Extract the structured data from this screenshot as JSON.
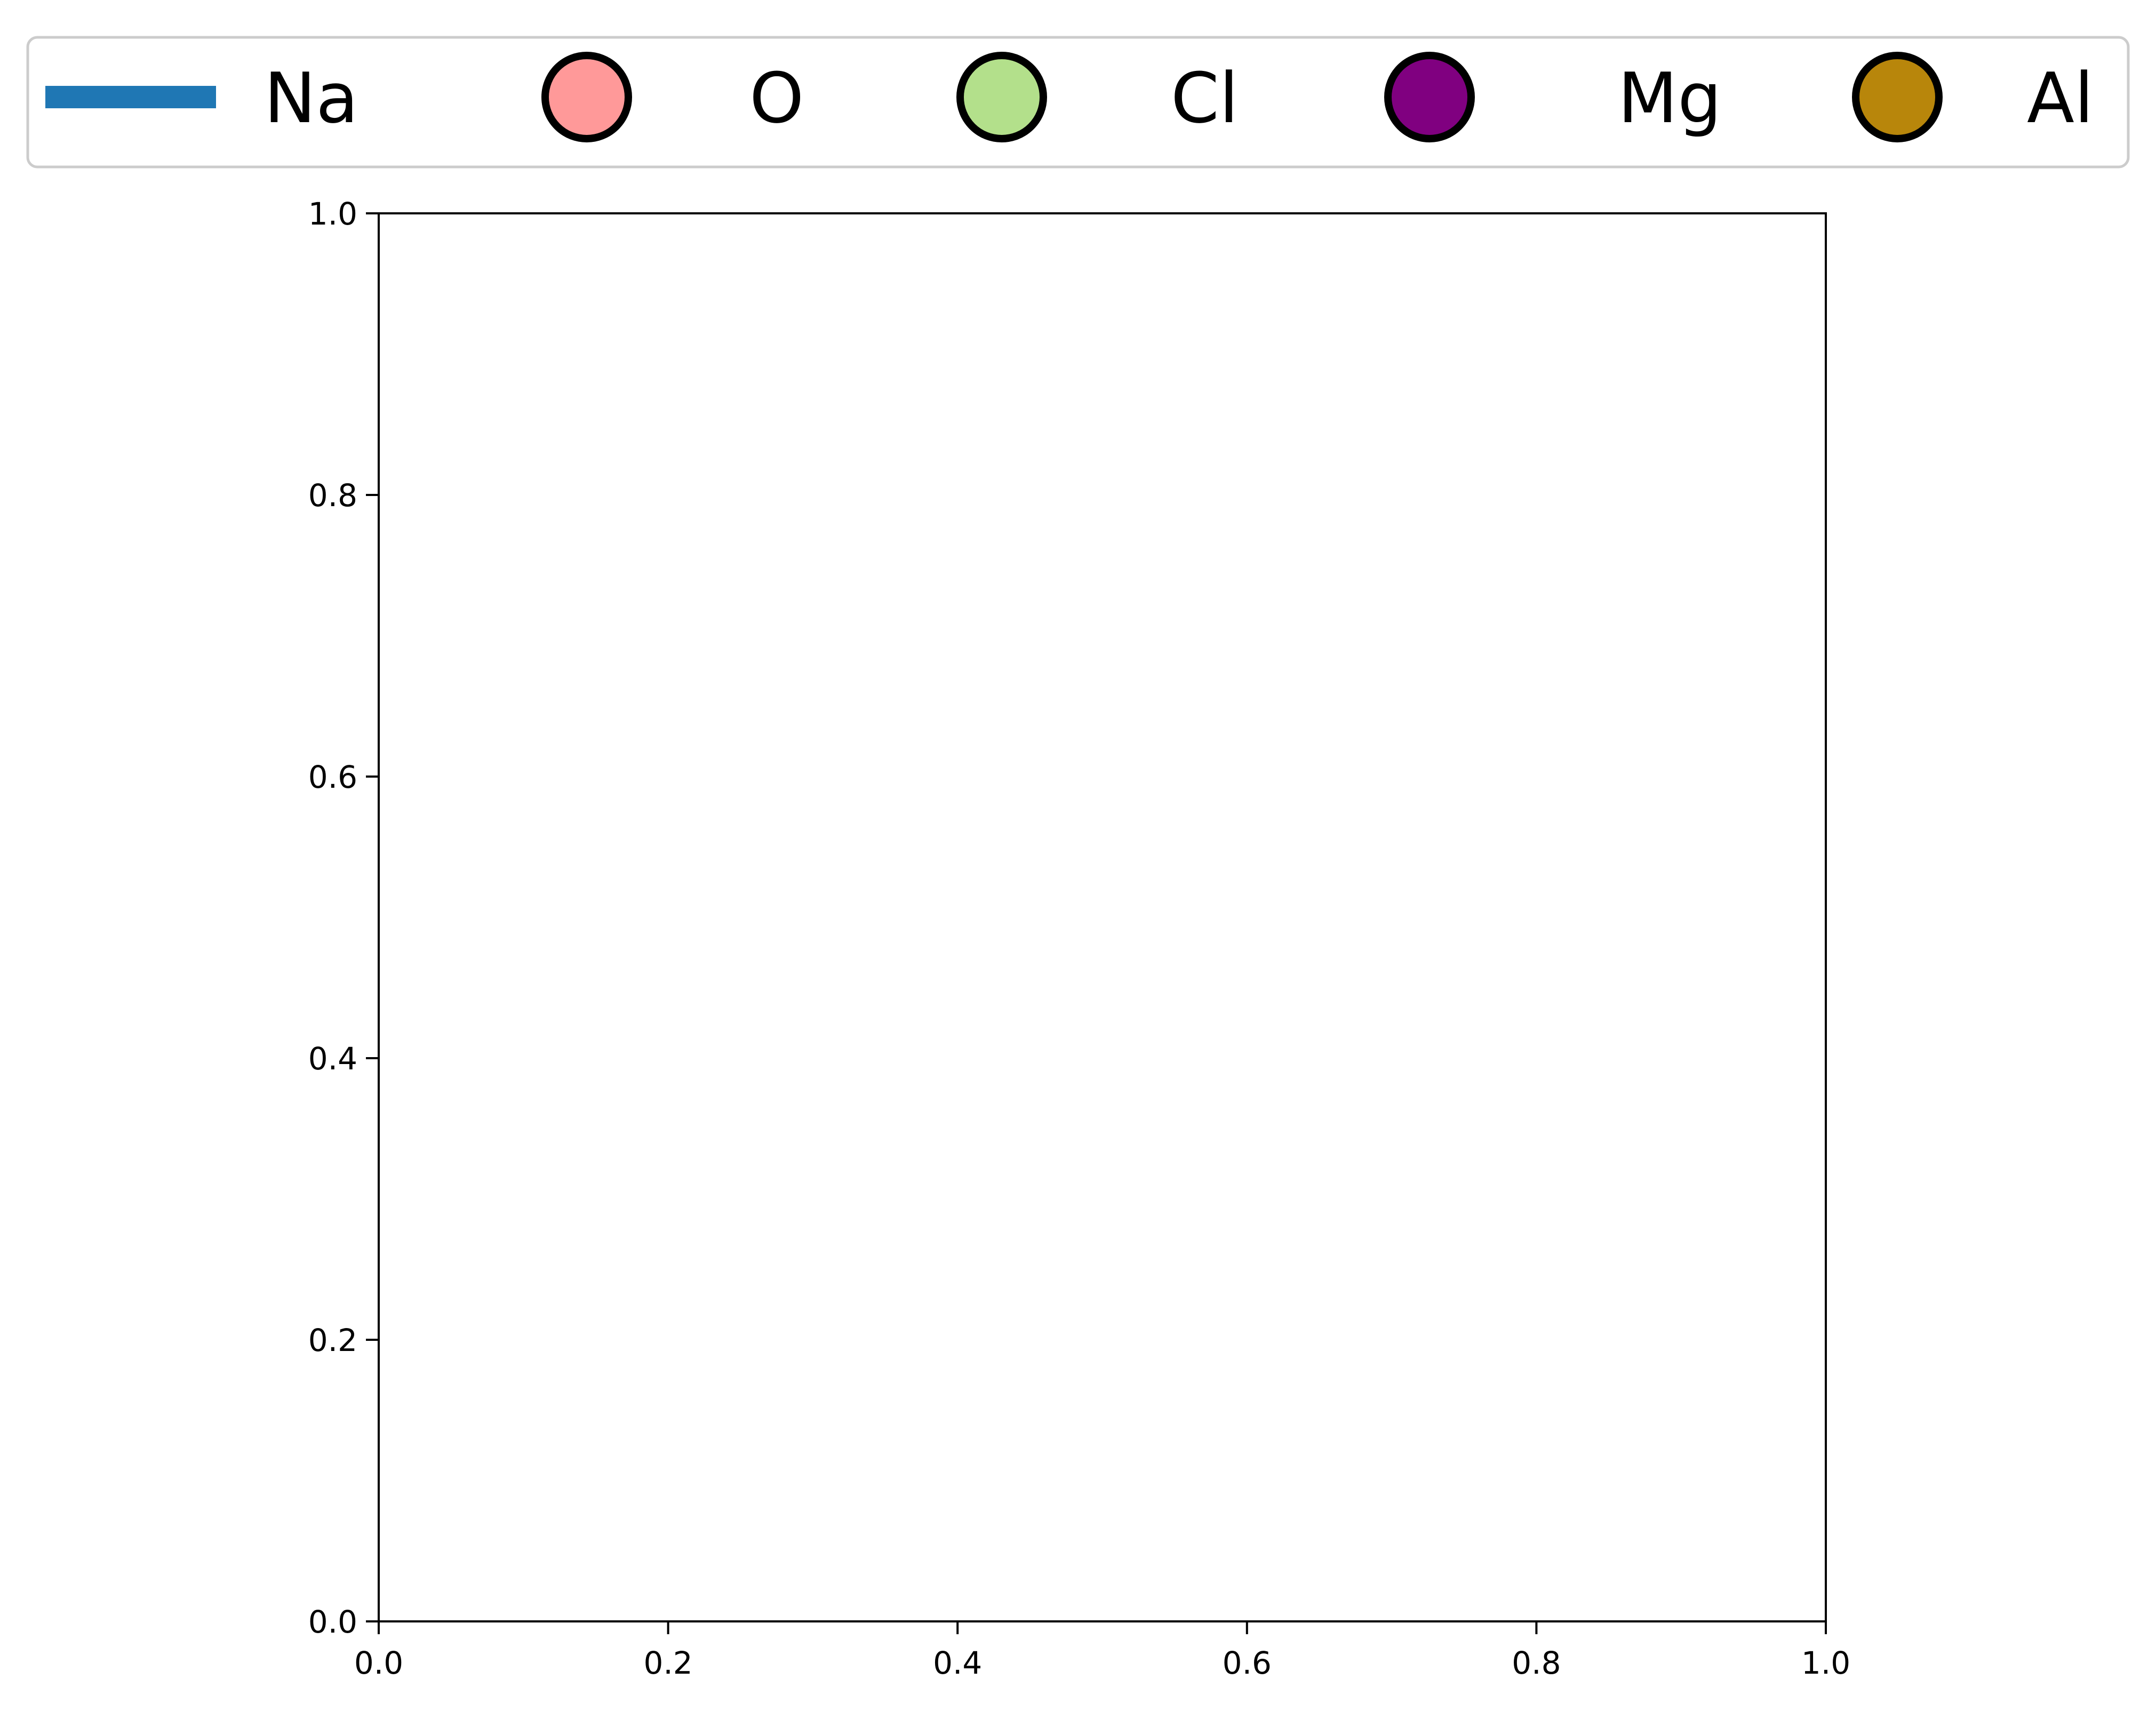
{
  "chart_data": {
    "type": "scatter",
    "title": "",
    "xlabel": "",
    "ylabel": "",
    "xlim": [
      0.0,
      1.0
    ],
    "ylim": [
      0.0,
      1.0
    ],
    "x_ticks": [
      "0.0",
      "0.2",
      "0.4",
      "0.6",
      "0.8",
      "1.0"
    ],
    "y_ticks": [
      "0.0",
      "0.2",
      "0.4",
      "0.6",
      "0.8",
      "1.0"
    ],
    "grid": false,
    "legend_position": "top",
    "series": [
      {
        "name": "Na",
        "marker": "line",
        "color": "#1f77b4",
        "points": []
      },
      {
        "name": "O",
        "marker": "circle",
        "color": "#ff9999",
        "points": []
      },
      {
        "name": "Cl",
        "marker": "circle",
        "color": "#b3e08b",
        "points": []
      },
      {
        "name": "Mg",
        "marker": "circle",
        "color": "#800080",
        "points": []
      },
      {
        "name": "Al",
        "marker": "circle",
        "color": "#b8860b",
        "points": []
      }
    ]
  }
}
